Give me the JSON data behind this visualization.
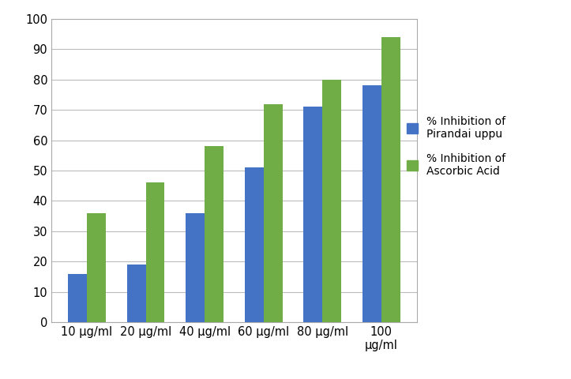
{
  "categories": [
    "10 μg/ml",
    "20 μg/ml",
    "40 μg/ml",
    "60 μg/ml",
    "80 μg/ml",
    "100\nμg/ml"
  ],
  "pirandai_values": [
    16,
    19,
    36,
    51,
    71,
    78
  ],
  "ascorbic_values": [
    36,
    46,
    58,
    72,
    80,
    94
  ],
  "pirandai_color": "#4472C4",
  "ascorbic_color": "#70AD47",
  "ylim": [
    0,
    100
  ],
  "yticks": [
    0,
    10,
    20,
    30,
    40,
    50,
    60,
    70,
    80,
    90,
    100
  ],
  "legend_label_pirandai": "% Inhibition of\nPirandai uppu",
  "legend_label_ascorbic": "% Inhibition of\nAscorbic Acid",
  "bar_width": 0.32,
  "background_color": "#ffffff",
  "outer_bg": "#f2f2f2",
  "grid_color": "#bbbbbb",
  "border_color": "#aaaaaa"
}
